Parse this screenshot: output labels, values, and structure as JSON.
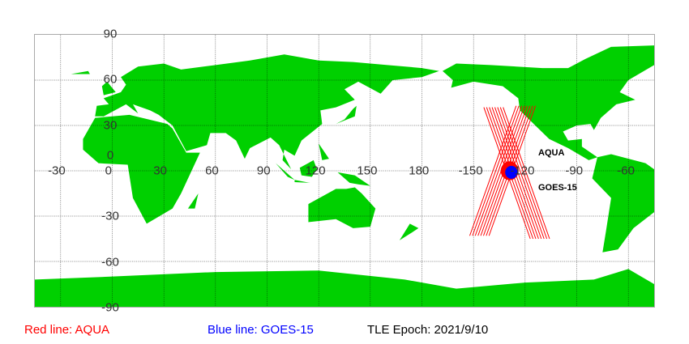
{
  "map": {
    "projection": "equirectangular",
    "lon_range_display": [
      -45,
      315
    ],
    "lat_range": [
      -90,
      90
    ],
    "grid": true,
    "colors": {
      "land": "#00d000",
      "ocean": "#ffffff",
      "grid": "#000000"
    },
    "lon_labels": [
      "-30",
      "0",
      "30",
      "60",
      "90",
      "120",
      "150",
      "180",
      "-150",
      "-120",
      "-90",
      "-60"
    ],
    "lat_labels": [
      "90",
      "60",
      "30",
      "0",
      "-30",
      "-60",
      "-90"
    ]
  },
  "satellites": [
    {
      "name": "AQUA",
      "color": "#ff0000",
      "lon": -129,
      "lat": 0
    },
    {
      "name": "GOES-15",
      "color": "#0000ff",
      "lon": -128,
      "lat": -1
    }
  ],
  "legend": {
    "red": "Red line: AQUA",
    "blue": "Blue line: GOES-15",
    "epoch": "TLE Epoch: 2021/9/10"
  }
}
